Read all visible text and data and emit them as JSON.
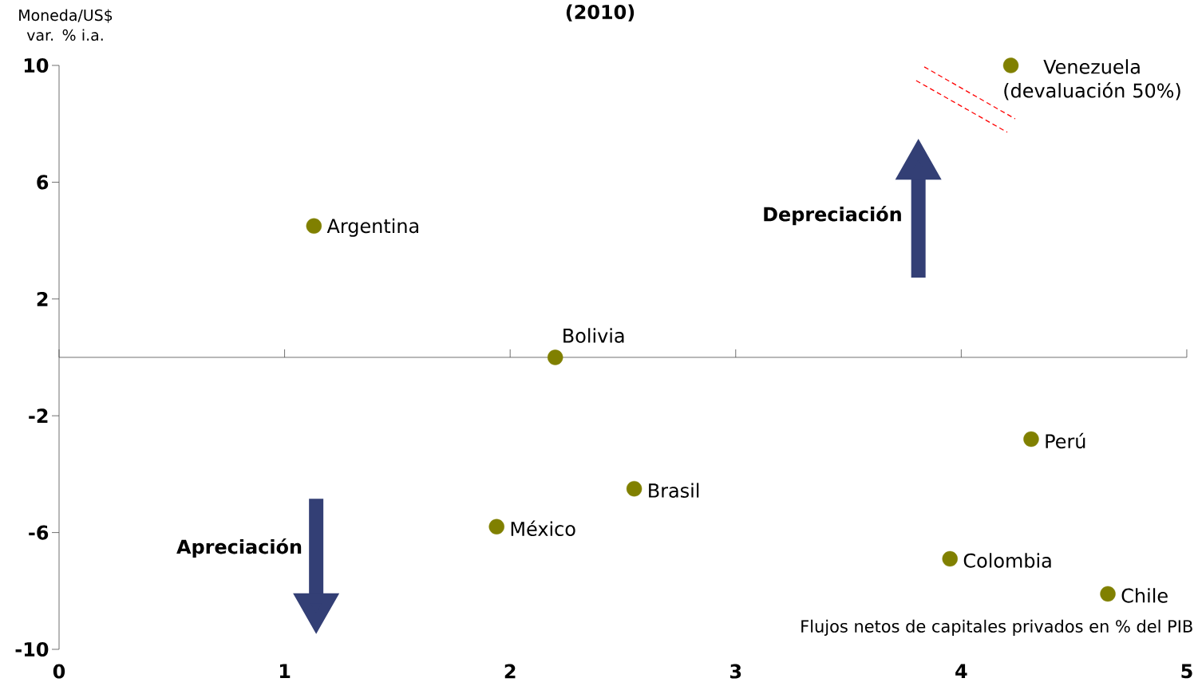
{
  "chart_data": {
    "type": "scatter",
    "title": "(2010)",
    "xlabel": "Flujos netos de capitales privados en % del PIB",
    "ylabel": "Moneda/US$ var. % i.a.",
    "x": [
      4.22,
      1.13,
      2.2,
      4.31,
      2.55,
      1.94,
      3.95,
      4.65
    ],
    "values": [
      10.0,
      4.5,
      0.0,
      -2.8,
      -4.5,
      -5.8,
      -6.9,
      -8.1
    ],
    "color": "#808000",
    "marker": "circle",
    "xlim": [
      0,
      5
    ],
    "ylim": [
      -10,
      10
    ],
    "xticks": [
      0,
      1,
      2,
      3,
      4,
      5
    ],
    "yticks": [
      -10,
      -6,
      -2,
      2,
      6,
      10
    ],
    "annotations": [
      {
        "text": "Venezuela (devaluación 50%)",
        "x": 4.22,
        "y": 10.0
      },
      {
        "text": "Argentina",
        "x": 1.13,
        "y": 4.5
      },
      {
        "text": "Bolivia",
        "x": 2.2,
        "y": 0.0
      },
      {
        "text": "Perú",
        "x": 4.31,
        "y": -2.8
      },
      {
        "text": "Brasil",
        "x": 2.55,
        "y": -4.5
      },
      {
        "text": "México",
        "x": 1.94,
        "y": -5.8
      },
      {
        "text": "Colombia",
        "x": 3.95,
        "y": -6.9
      },
      {
        "text": "Chile",
        "x": 4.65,
        "y": -8.1
      },
      "Depreciación",
      "Apreciación"
    ]
  }
}
